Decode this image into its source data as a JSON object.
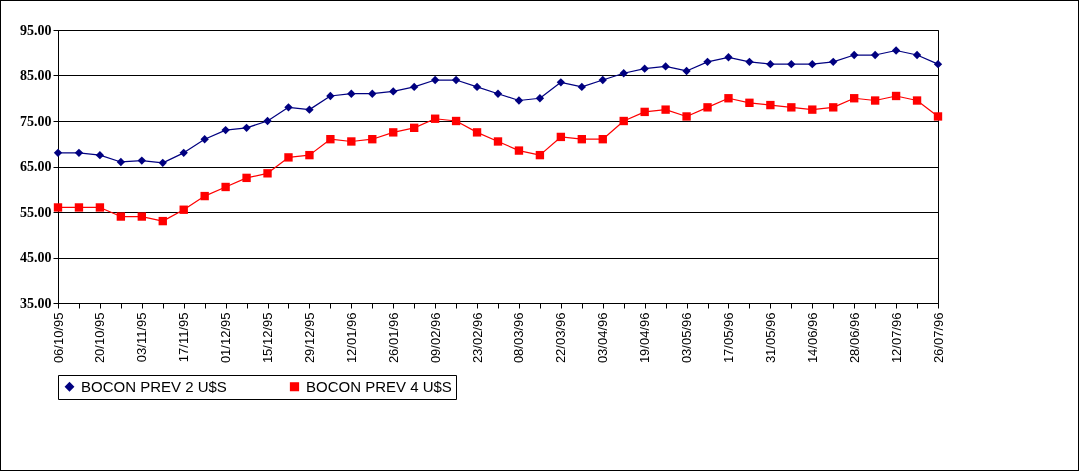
{
  "chart_data": {
    "type": "line",
    "categories": [
      "06/10/95",
      null,
      "20/10/95",
      null,
      "03/11/95",
      null,
      "17/11/95",
      null,
      "01/12/95",
      null,
      "15/12/95",
      null,
      "29/12/95",
      null,
      "12/01/96",
      null,
      "26/01/96",
      null,
      "09/02/96",
      null,
      "23/02/96",
      null,
      "08/03/96",
      null,
      "22/03/96",
      null,
      "03/04/96",
      null,
      "19/04/96",
      null,
      "03/05/96",
      null,
      "17/05/96",
      null,
      "31/05/96",
      null,
      "14/06/96",
      null,
      "28/06/96",
      null,
      "12/07/96",
      null,
      "26/07/96"
    ],
    "series": [
      {
        "name": "BOCON PREV 2 U$S",
        "color": "#000080",
        "marker": "diamond",
        "values": [
          68,
          68,
          67.5,
          66,
          66.3,
          65.8,
          68,
          71,
          73,
          73.5,
          75,
          78,
          77.5,
          80.5,
          81,
          81,
          81.5,
          82.5,
          84,
          84,
          82.5,
          81,
          79.5,
          80,
          83.5,
          82.5,
          84,
          85.5,
          86.5,
          87,
          86,
          88,
          89,
          88,
          87.5,
          87.5,
          87.5,
          88,
          89.5,
          89.5,
          90.5,
          89.5,
          87.5
        ]
      },
      {
        "name": "BOCON PREV 4 U$S",
        "color": "#ff0000",
        "marker": "square",
        "values": [
          56,
          56,
          56,
          54,
          54,
          53,
          55.5,
          58.5,
          60.5,
          62.5,
          63.5,
          67,
          67.5,
          71,
          70.5,
          71,
          72.5,
          73.5,
          75.5,
          75,
          72.5,
          70.5,
          68.5,
          67.5,
          71.5,
          71,
          71,
          75,
          77,
          77.5,
          76,
          78,
          80,
          79,
          78.5,
          78,
          77.5,
          78,
          80,
          79.5,
          80.5,
          79.5,
          76
        ]
      }
    ],
    "ylim": [
      35,
      95
    ],
    "yticks": [
      {
        "value": 35,
        "label": "35.00"
      },
      {
        "value": 45,
        "label": "45.00"
      },
      {
        "value": 55,
        "label": "55.00"
      },
      {
        "value": 65,
        "label": "65.00"
      },
      {
        "value": 75,
        "label": "75.00"
      },
      {
        "value": 85,
        "label": "85.00"
      },
      {
        "value": 95,
        "label": "95.00"
      }
    ],
    "grid": "y",
    "legend": "bottom",
    "line_style": "solid"
  }
}
